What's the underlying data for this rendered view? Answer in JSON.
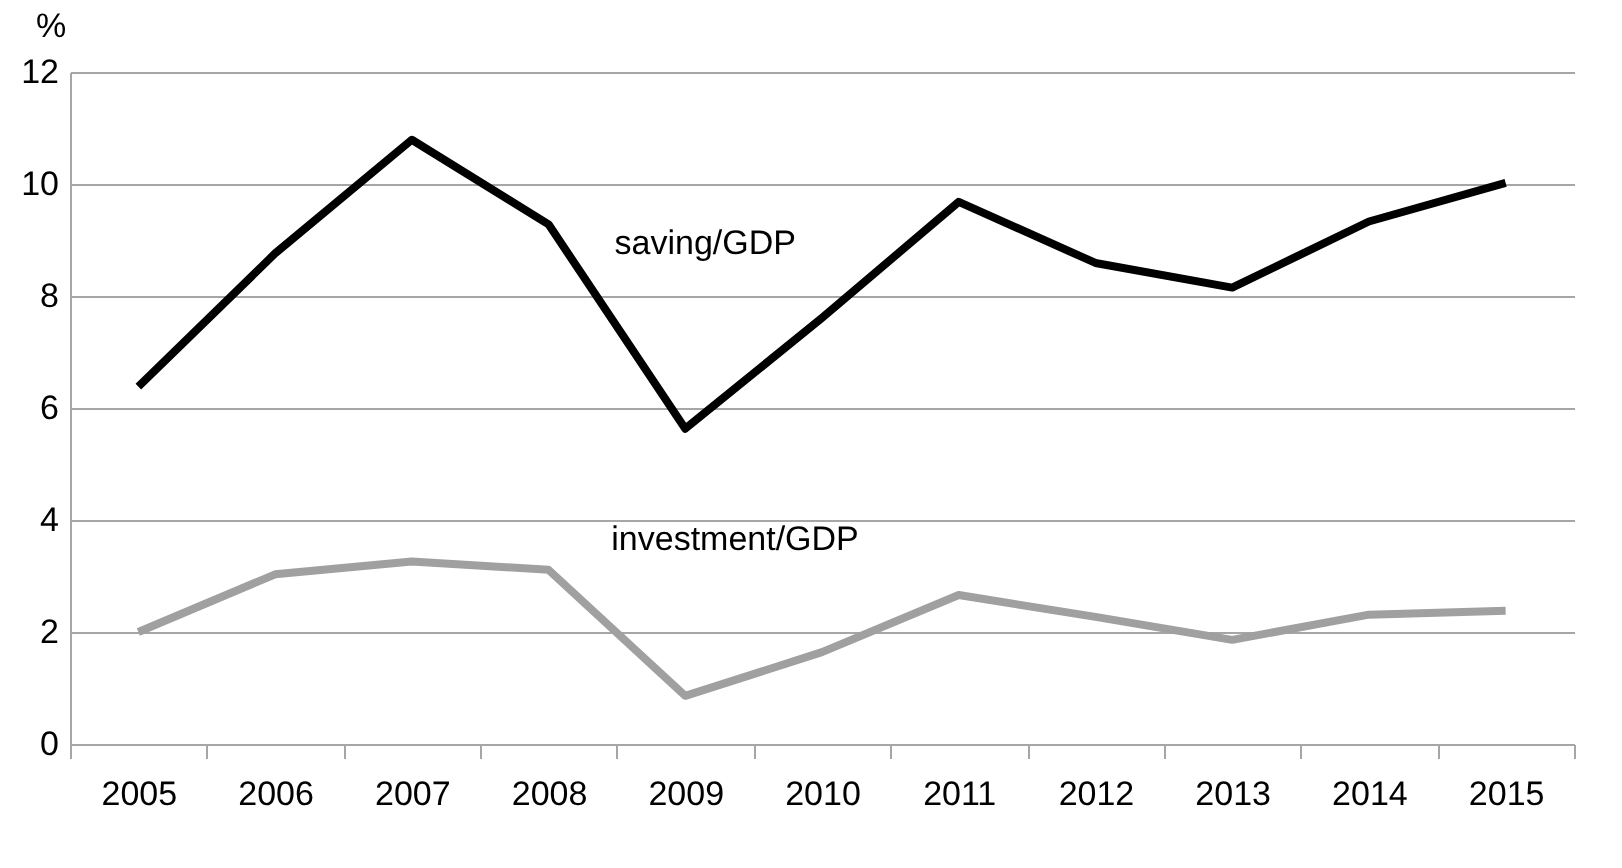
{
  "chart_data": {
    "type": "line",
    "ylabel": "%",
    "categories": [
      "2005",
      "2006",
      "2007",
      "2008",
      "2009",
      "2010",
      "2011",
      "2012",
      "2013",
      "2014",
      "2015"
    ],
    "series": [
      {
        "name": "saving/GDP",
        "color": "#000000",
        "values": [
          6.38,
          8.76,
          10.79,
          9.28,
          5.63,
          7.61,
          9.68,
          8.59,
          8.15,
          9.33,
          10.02
        ]
      },
      {
        "name": "investment/GDP",
        "color": "#a0a0a0",
        "values": [
          2.0,
          3.03,
          3.26,
          3.11,
          0.86,
          1.64,
          2.66,
          2.27,
          1.86,
          2.31,
          2.38
        ]
      }
    ],
    "ylim": [
      0,
      12
    ],
    "yticks": [
      0,
      2,
      4,
      6,
      8,
      10,
      12
    ],
    "grid": "y",
    "legend": false,
    "marker": "none",
    "line_style": "solid"
  }
}
